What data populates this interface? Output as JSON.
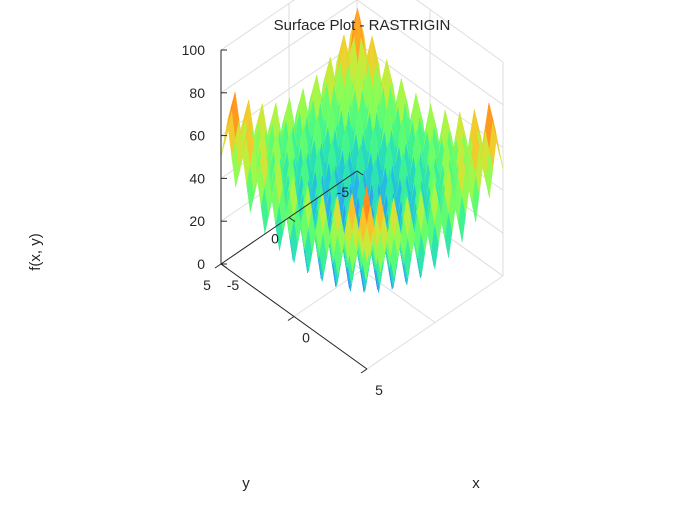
{
  "chart_data": {
    "type": "surface",
    "title": "Surface Plot - RASTRIGIN",
    "xlabel": "x",
    "ylabel": "y",
    "zlabel": "f(x, y)",
    "function": "f(x, y) = 20 + x^2 + y^2 - 10cos(2πx) - 10cos(2πy)",
    "xlim": [
      -5,
      5
    ],
    "ylim": [
      -5,
      5
    ],
    "zlim": [
      0,
      100
    ],
    "x_ticks": [
      -5,
      0,
      5
    ],
    "y_ticks": [
      -5,
      0,
      5
    ],
    "z_ticks": [
      0,
      20,
      40,
      60,
      80,
      100
    ],
    "grid": true,
    "colormap": "turbo"
  }
}
